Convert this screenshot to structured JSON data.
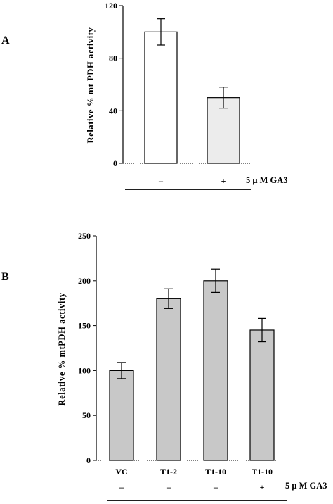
{
  "chart_data": [
    {
      "panel_label": "A",
      "type": "bar",
      "ylabel": "Relative % mt PDH activity",
      "ylim": [
        0,
        120
      ],
      "yticks": [
        "0",
        "40",
        "80",
        "120"
      ],
      "categories": [
        "",
        ""
      ],
      "treatment_label": "5 μ M GA3",
      "treatment_marks": [
        "–",
        "+"
      ],
      "values": [
        100,
        50
      ],
      "errors": [
        10,
        8
      ],
      "bar_colors": [
        "#ffffff",
        "#ececec"
      ],
      "grid": false
    },
    {
      "panel_label": "B",
      "type": "bar",
      "ylabel": "Relative % mtPDH activity",
      "ylim": [
        0,
        250
      ],
      "yticks": [
        "0",
        "50",
        "100",
        "150",
        "200",
        "250"
      ],
      "categories": [
        "VC",
        "T1-2",
        "T1-10",
        "T1-10"
      ],
      "treatment_label": "5 μ M GA3",
      "treatment_marks": [
        "–",
        "–",
        "–",
        "+"
      ],
      "values": [
        100,
        180,
        200,
        145
      ],
      "errors": [
        9,
        11,
        13,
        13
      ],
      "bar_colors": [
        "#c8c8c8",
        "#c8c8c8",
        "#c8c8c8",
        "#c8c8c8"
      ],
      "grid": false
    }
  ]
}
